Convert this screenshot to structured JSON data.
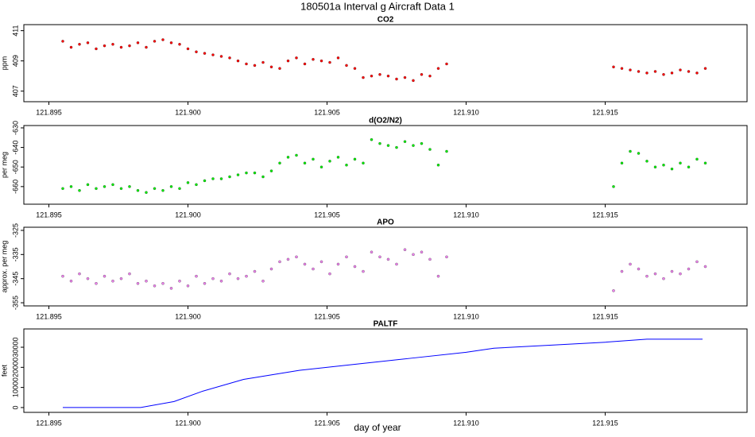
{
  "title": "180501a   Interval g Aircraft Data 1",
  "xlabel": "day of year",
  "chart_data": [
    {
      "type": "scatter",
      "title": "CO2",
      "ylabel": "ppm",
      "x": [
        121.8955,
        121.8958,
        121.8961,
        121.8964,
        121.8967,
        121.897,
        121.8973,
        121.8976,
        121.8979,
        121.8982,
        121.8985,
        121.8988,
        121.8991,
        121.8994,
        121.8997,
        121.9,
        121.9003,
        121.9006,
        121.9009,
        121.9012,
        121.9015,
        121.9018,
        121.9021,
        121.9024,
        121.9027,
        121.903,
        121.9033,
        121.9036,
        121.9039,
        121.9042,
        121.9045,
        121.9048,
        121.9051,
        121.9054,
        121.9057,
        121.906,
        121.9063,
        121.9066,
        121.9069,
        121.9072,
        121.9075,
        121.9078,
        121.9081,
        121.9084,
        121.9087,
        121.909,
        121.9093,
        121.9153,
        121.9156,
        121.9159,
        121.9162,
        121.9165,
        121.9168,
        121.9171,
        121.9174,
        121.9177,
        121.918,
        121.9183,
        121.9186
      ],
      "series": [
        {
          "name": "CO2",
          "color": "#ff0000",
          "values": [
            410.3,
            409.9,
            410.1,
            410.2,
            409.8,
            410.0,
            410.1,
            409.9,
            410.0,
            410.2,
            409.9,
            410.3,
            410.4,
            410.2,
            410.1,
            409.8,
            409.6,
            409.5,
            409.4,
            409.3,
            409.2,
            409.0,
            408.8,
            408.7,
            408.9,
            408.6,
            408.5,
            409.0,
            409.2,
            408.8,
            409.1,
            409.0,
            408.9,
            409.2,
            408.7,
            408.5,
            407.9,
            408.0,
            408.1,
            408.0,
            407.8,
            407.9,
            407.7,
            408.1,
            408.0,
            408.5,
            408.8,
            408.6,
            408.5,
            408.4,
            408.3,
            408.2,
            408.3,
            408.1,
            408.2,
            408.4,
            408.3,
            408.2,
            408.5
          ]
        }
      ],
      "xlim": [
        121.8941,
        121.9201
      ],
      "xticks": [
        121.895,
        {
          "value": 121.9,
          "label": "121.900"
        },
        121.905,
        {
          "value": 121.91,
          "label": "121.910"
        },
        121.915
      ],
      "ylim": [
        406.3,
        411.4
      ],
      "yticks": [
        407,
        409,
        411
      ]
    },
    {
      "type": "scatter",
      "title": "d(O2/N2)",
      "ylabel": "per meg",
      "x": [
        121.8955,
        121.8958,
        121.8961,
        121.8964,
        121.8967,
        121.897,
        121.8973,
        121.8976,
        121.8979,
        121.8982,
        121.8985,
        121.8988,
        121.8991,
        121.8994,
        121.8997,
        121.9,
        121.9003,
        121.9006,
        121.9009,
        121.9012,
        121.9015,
        121.9018,
        121.9021,
        121.9024,
        121.9027,
        121.903,
        121.9033,
        121.9036,
        121.9039,
        121.9042,
        121.9045,
        121.9048,
        121.9051,
        121.9054,
        121.9057,
        121.906,
        121.9063,
        121.9066,
        121.9069,
        121.9072,
        121.9075,
        121.9078,
        121.9081,
        121.9084,
        121.9087,
        121.909,
        121.9093,
        121.9153,
        121.9156,
        121.9159,
        121.9162,
        121.9165,
        121.9168,
        121.9171,
        121.9174,
        121.9177,
        121.918,
        121.9183,
        121.9186
      ],
      "series": [
        {
          "name": "d(O2/N2)",
          "color": "#00ee00",
          "values": [
            -661,
            -660,
            -662,
            -659,
            -661,
            -660,
            -659,
            -661,
            -660,
            -662,
            -663,
            -661,
            -662,
            -660,
            -661,
            -658,
            -659,
            -657,
            -656,
            -656,
            -655,
            -654,
            -653,
            -653,
            -655,
            -652,
            -648,
            -645,
            -644,
            -648,
            -646,
            -650,
            -647,
            -645,
            -649,
            -646,
            -648,
            -636,
            -638,
            -639,
            -640,
            -637,
            -639,
            -638,
            -641,
            -649,
            -642,
            -660,
            -648,
            -642,
            -643,
            -647,
            -650,
            -649,
            -651,
            -648,
            -650,
            -646,
            -648
          ]
        }
      ],
      "xlim": [
        121.8941,
        121.9201
      ],
      "xticks": [
        121.895,
        {
          "value": 121.9,
          "label": "121.900"
        },
        121.905,
        {
          "value": 121.91,
          "label": "121.910"
        },
        121.915
      ],
      "ylim": [
        -669,
        -628.8
      ],
      "yticks": [
        -630,
        -640,
        -650,
        -660
      ]
    },
    {
      "type": "scatter",
      "title": "APO",
      "ylabel": "approx. per meg",
      "x": [
        121.8955,
        121.8958,
        121.8961,
        121.8964,
        121.8967,
        121.897,
        121.8973,
        121.8976,
        121.8979,
        121.8982,
        121.8985,
        121.8988,
        121.8991,
        121.8994,
        121.8997,
        121.9,
        121.9003,
        121.9006,
        121.9009,
        121.9012,
        121.9015,
        121.9018,
        121.9021,
        121.9024,
        121.9027,
        121.903,
        121.9033,
        121.9036,
        121.9039,
        121.9042,
        121.9045,
        121.9048,
        121.9051,
        121.9054,
        121.9057,
        121.906,
        121.9063,
        121.9066,
        121.9069,
        121.9072,
        121.9075,
        121.9078,
        121.9081,
        121.9084,
        121.9087,
        121.909,
        121.9093,
        121.9153,
        121.9156,
        121.9159,
        121.9162,
        121.9165,
        121.9168,
        121.9171,
        121.9174,
        121.9177,
        121.918,
        121.9183,
        121.9186
      ],
      "series": [
        {
          "name": "APO",
          "color": "#ee82ee",
          "values": [
            -344,
            -346,
            -343,
            -345,
            -347,
            -344,
            -346,
            -345,
            -343,
            -347,
            -346,
            -348,
            -347,
            -349,
            -346,
            -348,
            -344,
            -347,
            -345,
            -346,
            -343,
            -345,
            -344,
            -342,
            -346,
            -341,
            -338,
            -337,
            -336,
            -339,
            -341,
            -338,
            -343,
            -339,
            -336,
            -340,
            -342,
            -334,
            -336,
            -337,
            -339,
            -333,
            -335,
            -334,
            -337,
            -344,
            -336,
            -350,
            -342,
            -339,
            -341,
            -344,
            -343,
            -345,
            -342,
            -343,
            -341,
            -338,
            -340
          ]
        }
      ],
      "xlim": [
        121.8941,
        121.9201
      ],
      "xticks": [
        121.895,
        {
          "value": 121.9,
          "label": "121.900"
        },
        121.905,
        {
          "value": 121.91,
          "label": "121.910"
        },
        121.915
      ],
      "ylim": [
        -356.3,
        -323.7
      ],
      "yticks": [
        -325,
        -335,
        -345,
        -355
      ]
    },
    {
      "type": "line",
      "title": "PALTF",
      "ylabel": "feet",
      "x": [
        121.8955,
        121.8983,
        121.8995,
        121.9005,
        121.902,
        121.904,
        121.906,
        121.908,
        121.91,
        121.911,
        121.913,
        121.915,
        121.9165,
        121.9185
      ],
      "series": [
        {
          "name": "PALTF",
          "color": "#0000ff",
          "values": [
            0,
            0,
            3000,
            8000,
            14000,
            18500,
            21500,
            24500,
            27500,
            29500,
            31000,
            32500,
            34000,
            34000
          ]
        }
      ],
      "xlim": [
        121.8941,
        121.9201
      ],
      "xticks": [
        121.895,
        {
          "value": 121.9,
          "label": "121.900"
        },
        121.905,
        {
          "value": 121.91,
          "label": "121.910"
        },
        121.915
      ],
      "ylim": [
        -2400,
        39100
      ],
      "yticks": [
        0,
        10000,
        20000,
        30000
      ]
    }
  ]
}
